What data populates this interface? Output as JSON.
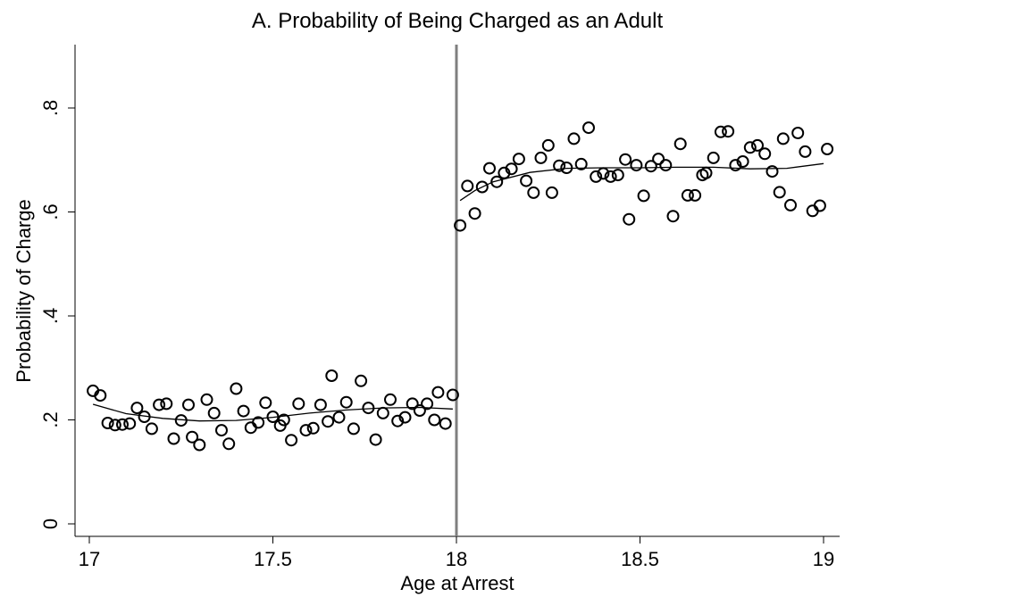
{
  "chart_data": {
    "type": "scatter",
    "title": "A. Probability of Being Charged as an Adult",
    "xlabel": "Age at Arrest",
    "ylabel": "Probability of Charge",
    "xlim": [
      17,
      19
    ],
    "ylim": [
      0,
      0.92
    ],
    "xticks": [
      17,
      17.5,
      18,
      18.5,
      19
    ],
    "xtick_labels": [
      "17",
      "17.5",
      "18",
      "18.5",
      "19"
    ],
    "yticks": [
      0,
      0.2,
      0.4,
      0.6,
      0.8
    ],
    "ytick_labels": [
      "0",
      ".2",
      ".4",
      ".6",
      ".8"
    ],
    "cutoff": 18,
    "grid": false,
    "legend": "none",
    "marker": "hollow-circle",
    "colors": {
      "markers": "#000000",
      "fit": "#000000",
      "cutoff_line": "#7f7f7f",
      "axes": "#000000"
    },
    "series": [
      {
        "points": [
          [
            17.01,
            0.256
          ],
          [
            17.03,
            0.247
          ],
          [
            17.05,
            0.194
          ],
          [
            17.07,
            0.19
          ],
          [
            17.09,
            0.191
          ],
          [
            17.11,
            0.193
          ],
          [
            17.13,
            0.223
          ],
          [
            17.15,
            0.206
          ],
          [
            17.17,
            0.183
          ],
          [
            17.19,
            0.229
          ],
          [
            17.21,
            0.231
          ],
          [
            17.23,
            0.164
          ],
          [
            17.25,
            0.199
          ],
          [
            17.27,
            0.229
          ],
          [
            17.28,
            0.167
          ],
          [
            17.3,
            0.152
          ],
          [
            17.32,
            0.239
          ],
          [
            17.34,
            0.213
          ],
          [
            17.36,
            0.18
          ],
          [
            17.38,
            0.154
          ],
          [
            17.4,
            0.26
          ],
          [
            17.42,
            0.217
          ],
          [
            17.44,
            0.185
          ],
          [
            17.46,
            0.195
          ],
          [
            17.48,
            0.233
          ],
          [
            17.5,
            0.206
          ],
          [
            17.52,
            0.189
          ],
          [
            17.53,
            0.2
          ],
          [
            17.55,
            0.161
          ],
          [
            17.57,
            0.231
          ],
          [
            17.59,
            0.18
          ],
          [
            17.61,
            0.184
          ],
          [
            17.63,
            0.229
          ],
          [
            17.65,
            0.197
          ],
          [
            17.66,
            0.285
          ],
          [
            17.68,
            0.205
          ],
          [
            17.7,
            0.234
          ],
          [
            17.72,
            0.183
          ],
          [
            17.74,
            0.275
          ],
          [
            17.76,
            0.223
          ],
          [
            17.78,
            0.162
          ],
          [
            17.8,
            0.213
          ],
          [
            17.82,
            0.239
          ],
          [
            17.84,
            0.198
          ],
          [
            17.86,
            0.205
          ],
          [
            17.88,
            0.231
          ],
          [
            17.9,
            0.218
          ],
          [
            17.92,
            0.231
          ],
          [
            17.94,
            0.2
          ],
          [
            17.95,
            0.253
          ],
          [
            17.97,
            0.193
          ],
          [
            17.99,
            0.248
          ],
          [
            18.01,
            0.574
          ],
          [
            18.03,
            0.65
          ],
          [
            18.05,
            0.597
          ],
          [
            18.07,
            0.648
          ],
          [
            18.09,
            0.684
          ],
          [
            18.11,
            0.658
          ],
          [
            18.13,
            0.675
          ],
          [
            18.15,
            0.683
          ],
          [
            18.17,
            0.702
          ],
          [
            18.19,
            0.66
          ],
          [
            18.21,
            0.637
          ],
          [
            18.23,
            0.704
          ],
          [
            18.25,
            0.728
          ],
          [
            18.26,
            0.637
          ],
          [
            18.28,
            0.689
          ],
          [
            18.3,
            0.685
          ],
          [
            18.32,
            0.741
          ],
          [
            18.34,
            0.692
          ],
          [
            18.36,
            0.762
          ],
          [
            18.38,
            0.668
          ],
          [
            18.4,
            0.674
          ],
          [
            18.42,
            0.668
          ],
          [
            18.44,
            0.671
          ],
          [
            18.46,
            0.701
          ],
          [
            18.47,
            0.586
          ],
          [
            18.49,
            0.69
          ],
          [
            18.51,
            0.631
          ],
          [
            18.53,
            0.688
          ],
          [
            18.55,
            0.702
          ],
          [
            18.57,
            0.69
          ],
          [
            18.59,
            0.592
          ],
          [
            18.61,
            0.731
          ],
          [
            18.63,
            0.632
          ],
          [
            18.65,
            0.632
          ],
          [
            18.67,
            0.671
          ],
          [
            18.68,
            0.675
          ],
          [
            18.7,
            0.704
          ],
          [
            18.72,
            0.754
          ],
          [
            18.74,
            0.755
          ],
          [
            18.76,
            0.69
          ],
          [
            18.78,
            0.697
          ],
          [
            18.8,
            0.724
          ],
          [
            18.82,
            0.728
          ],
          [
            18.84,
            0.712
          ],
          [
            18.86,
            0.678
          ],
          [
            18.88,
            0.638
          ],
          [
            18.89,
            0.741
          ],
          [
            18.91,
            0.613
          ],
          [
            18.93,
            0.752
          ],
          [
            18.95,
            0.716
          ],
          [
            18.97,
            0.602
          ],
          [
            18.99,
            0.612
          ],
          [
            19.01,
            0.721
          ]
        ]
      }
    ],
    "fit_lines": [
      {
        "side": "left",
        "points": [
          [
            17.01,
            0.23
          ],
          [
            17.1,
            0.212
          ],
          [
            17.2,
            0.203
          ],
          [
            17.3,
            0.198
          ],
          [
            17.4,
            0.199
          ],
          [
            17.5,
            0.205
          ],
          [
            17.6,
            0.213
          ],
          [
            17.7,
            0.219
          ],
          [
            17.8,
            0.223
          ],
          [
            17.9,
            0.224
          ],
          [
            17.99,
            0.221
          ]
        ]
      },
      {
        "side": "right",
        "points": [
          [
            18.01,
            0.622
          ],
          [
            18.05,
            0.641
          ],
          [
            18.1,
            0.658
          ],
          [
            18.2,
            0.676
          ],
          [
            18.3,
            0.684
          ],
          [
            18.4,
            0.685
          ],
          [
            18.5,
            0.685
          ],
          [
            18.6,
            0.686
          ],
          [
            18.7,
            0.686
          ],
          [
            18.8,
            0.683
          ],
          [
            18.9,
            0.684
          ],
          [
            19.0,
            0.693
          ]
        ]
      }
    ]
  }
}
